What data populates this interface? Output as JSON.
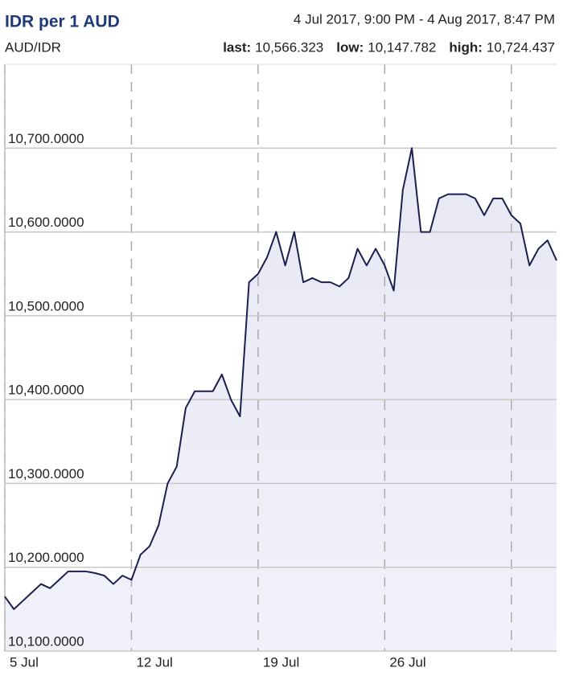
{
  "chart_data": {
    "type": "line",
    "title": "IDR per 1 AUD",
    "subtitle": "AUD/IDR",
    "date_range": "4 Jul 2017, 9:00 PM - 4 Aug 2017, 8:47 PM",
    "stats": [
      {
        "label": "last:",
        "value": "10,566.323"
      },
      {
        "label": "low:",
        "value": "10,147.782"
      },
      {
        "label": "high:",
        "value": "10,724.437"
      }
    ],
    "categories": [
      "5 Jul",
      null,
      null,
      null,
      null,
      null,
      null,
      null,
      null,
      null,
      null,
      null,
      null,
      null,
      "12 Jul",
      null,
      null,
      null,
      null,
      null,
      null,
      null,
      null,
      null,
      null,
      null,
      null,
      null,
      "19 Jul",
      null,
      null,
      null,
      null,
      null,
      null,
      null,
      null,
      null,
      null,
      null,
      null,
      null,
      "26 Jul",
      null,
      null,
      null,
      null,
      null,
      null,
      null,
      null,
      null,
      null,
      null,
      null,
      null,
      null,
      null,
      null,
      null,
      null,
      null
    ],
    "values": [
      10165,
      10150,
      10160,
      10170,
      10180,
      10175,
      10185,
      10195,
      10195,
      10195,
      10193,
      10190,
      10180,
      10190,
      10185,
      10215,
      10225,
      10250,
      10300,
      10320,
      10390,
      10410,
      10410,
      10410,
      10430,
      10400,
      10380,
      10540,
      10550,
      10570,
      10600,
      10560,
      10600,
      10540,
      10545,
      10540,
      10540,
      10535,
      10545,
      10580,
      10560,
      10580,
      10560,
      10530,
      10650,
      10700,
      10600,
      10600,
      10640,
      10645,
      10645,
      10645,
      10640,
      10620,
      10640,
      10640,
      10620,
      10610,
      10560,
      10580,
      10590,
      10566
    ],
    "color": "#1c1f4f",
    "ylim": [
      10100,
      10800
    ],
    "yticks": [
      {
        "value": 10100,
        "label": "10,100.0000"
      },
      {
        "value": 10200,
        "label": "10,200.0000"
      },
      {
        "value": 10300,
        "label": "10,300.0000"
      },
      {
        "value": 10400,
        "label": "10,400.0000"
      },
      {
        "value": 10500,
        "label": "10,500.0000"
      },
      {
        "value": 10600,
        "label": "10,600.0000"
      },
      {
        "value": 10700,
        "label": "10,700.0000"
      }
    ],
    "grid": true
  }
}
